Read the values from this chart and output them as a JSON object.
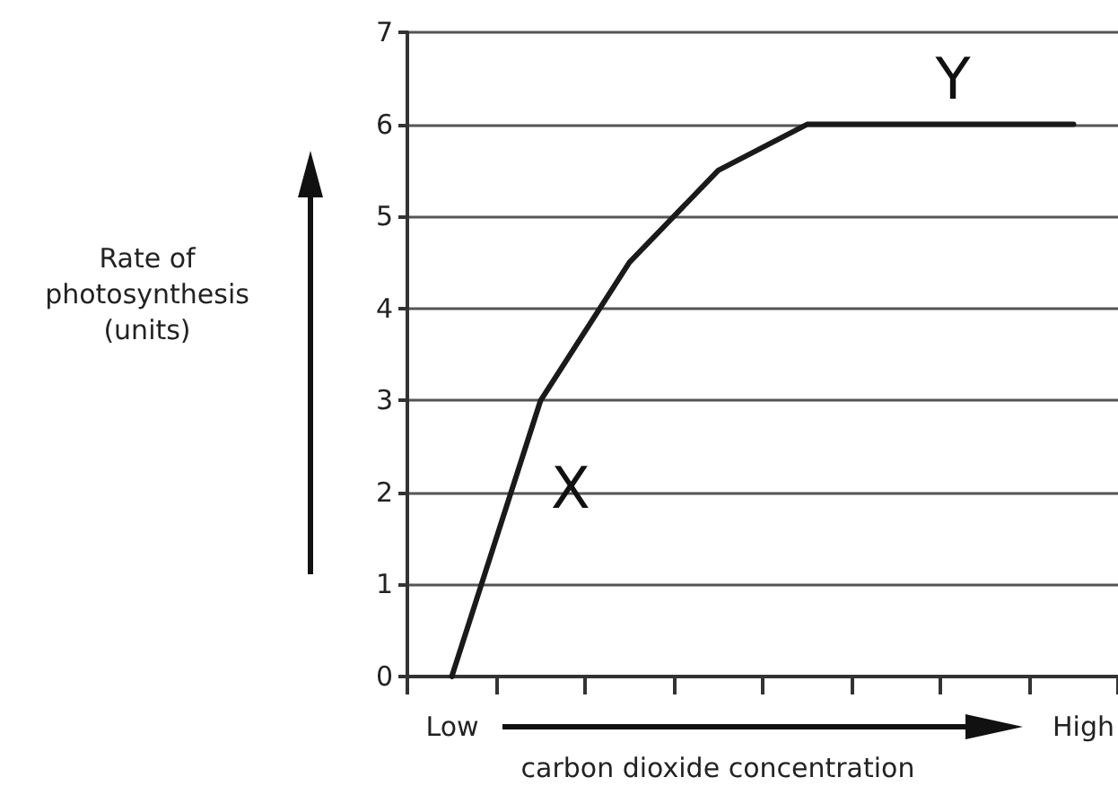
{
  "chart_data": {
    "type": "line",
    "xlabel": "carbon dioxide concentration",
    "ylabel": "Rate of\nphotosynthesis\n(units)",
    "categories": [
      null,
      null,
      null,
      null,
      null,
      null,
      null,
      null
    ],
    "series": [
      {
        "color": "#1a1a1a",
        "values": [
          0,
          3,
          4.5,
          5.5,
          6,
          6,
          6,
          6
        ]
      }
    ],
    "ylim": [
      0,
      7
    ],
    "yticks": [
      0,
      1,
      2,
      3,
      4,
      5,
      6,
      7
    ],
    "grid": "y",
    "marker": "none",
    "line_style": "solid",
    "annotations": [
      "X",
      "Y",
      "Low",
      "High"
    ]
  }
}
